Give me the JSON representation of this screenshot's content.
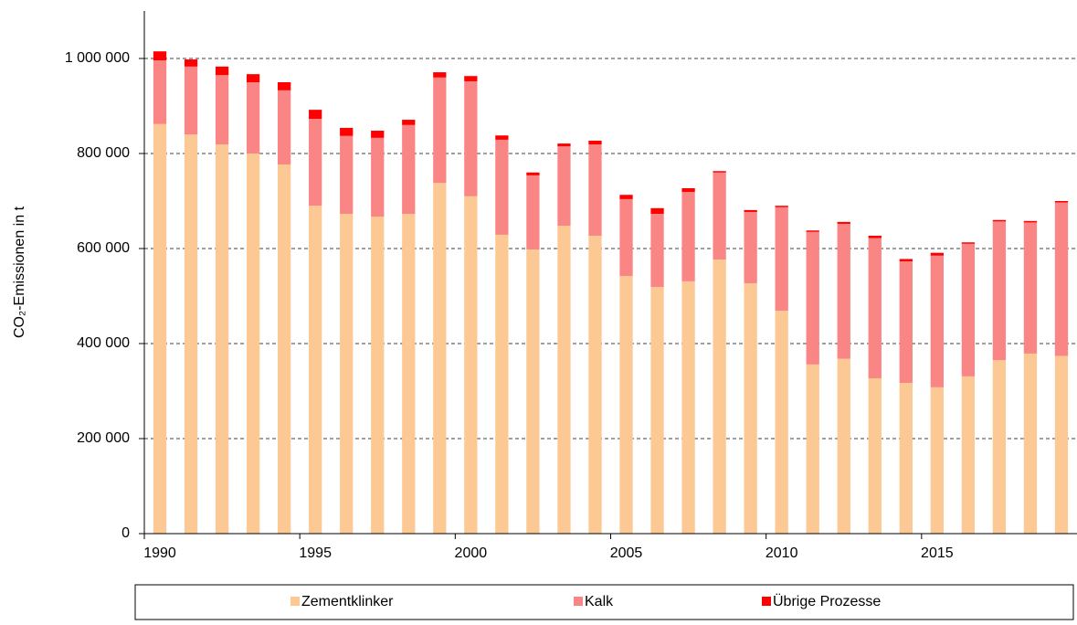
{
  "chart_data": {
    "type": "stacked_bar",
    "y_label": "CO₂-Emissionen in t",
    "categories": [
      "1990",
      null,
      null,
      null,
      null,
      "1995",
      null,
      null,
      null,
      null,
      "2000",
      null,
      null,
      null,
      null,
      "2005",
      null,
      null,
      null,
      null,
      "2010",
      null,
      null,
      null,
      null,
      "2015",
      null,
      null,
      null,
      null
    ],
    "series": [
      {
        "name": "Zementklinker",
        "color": "#fcc894",
        "values": [
          862000,
          840000,
          819000,
          800000,
          777000,
          690000,
          673000,
          667000,
          673000,
          738000,
          710000,
          629000,
          598000,
          648000,
          627000,
          542000,
          519000,
          531000,
          577000,
          527000,
          469000,
          356000,
          368000,
          327000,
          317000,
          308000,
          331000,
          365000,
          379000,
          374000
        ]
      },
      {
        "name": "Kalk",
        "color": "#fa8585",
        "values": [
          134000,
          143000,
          146000,
          150000,
          156000,
          183000,
          164000,
          166000,
          187000,
          222000,
          242000,
          200000,
          156000,
          167000,
          192000,
          162000,
          154000,
          188000,
          183000,
          150000,
          218000,
          279000,
          284000,
          295000,
          256000,
          277000,
          279000,
          292000,
          276000,
          323000
        ]
      },
      {
        "name": "Übrige Prozesse",
        "color": "#ff0000",
        "values": [
          19000,
          15000,
          18000,
          17000,
          17000,
          19000,
          17000,
          15000,
          11000,
          11000,
          11000,
          9000,
          6000,
          6000,
          8000,
          9000,
          12000,
          8000,
          3000,
          4000,
          3000,
          3000,
          4000,
          5000,
          5000,
          6000,
          3000,
          3000,
          3000,
          3000
        ]
      }
    ],
    "ylim": [
      0,
      1100000
    ],
    "yticks": [
      0,
      {
        "value": 200000,
        "label": "200 000"
      },
      {
        "value": 400000,
        "label": "400 000"
      },
      {
        "value": 600000,
        "label": "600 000"
      },
      {
        "value": 800000,
        "label": "800 000"
      },
      {
        "value": 1000000,
        "label": "1 000 000"
      }
    ],
    "grid": true
  }
}
